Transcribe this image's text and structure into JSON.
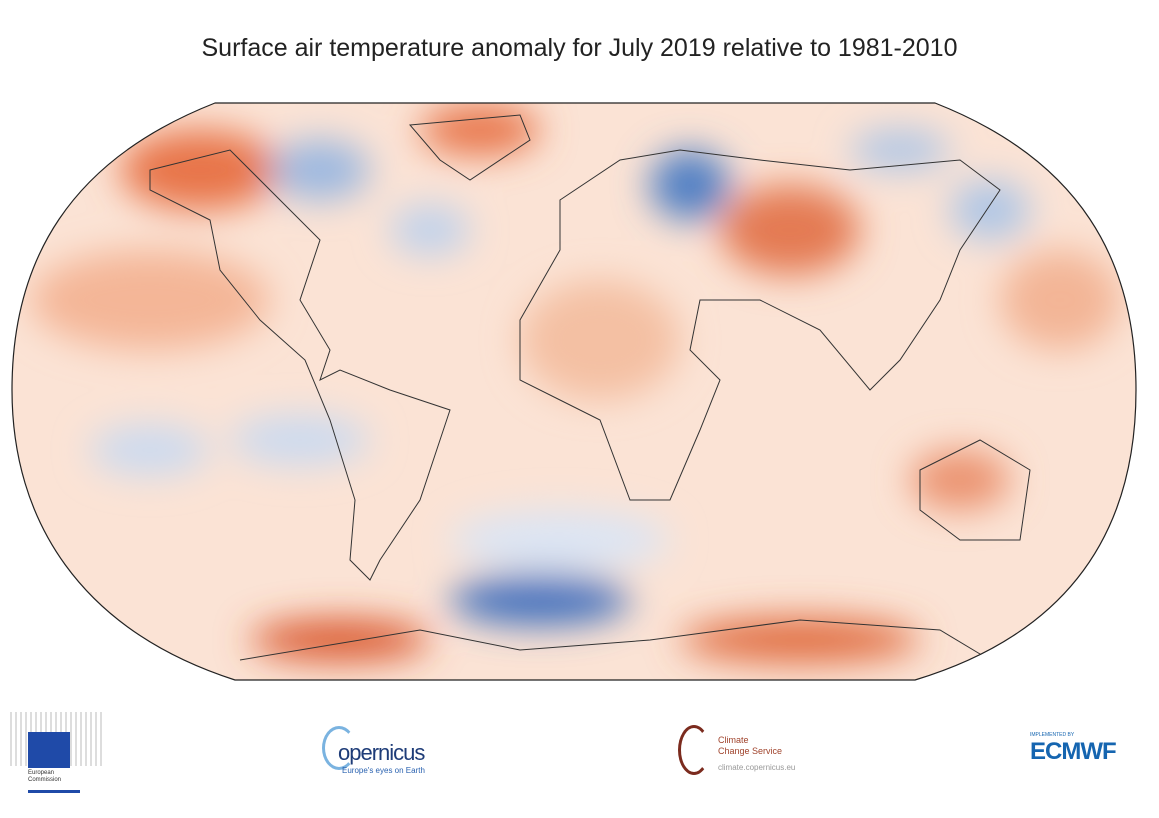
{
  "title": "Surface air temperature anomaly for July 2019 relative to 1981-2010",
  "colors": {
    "warm": "#d9542c",
    "warm_light": "#f7cdb5",
    "neutral": "#fbe8dc",
    "cool": "#7fa5d6",
    "cool_dark": "#2a5fb0",
    "coast": "#333333"
  },
  "logos": {
    "ec": {
      "line1": "European",
      "line2": "Commission"
    },
    "copernicus": {
      "name": "opernicus",
      "tagline": "Europe's eyes on Earth"
    },
    "c3s": {
      "line1": "Climate",
      "line2": "Change Service",
      "url": "climate.copernicus.eu"
    },
    "ecmwf": {
      "small": "IMPLEMENTED BY",
      "name": "ECMWF"
    }
  }
}
